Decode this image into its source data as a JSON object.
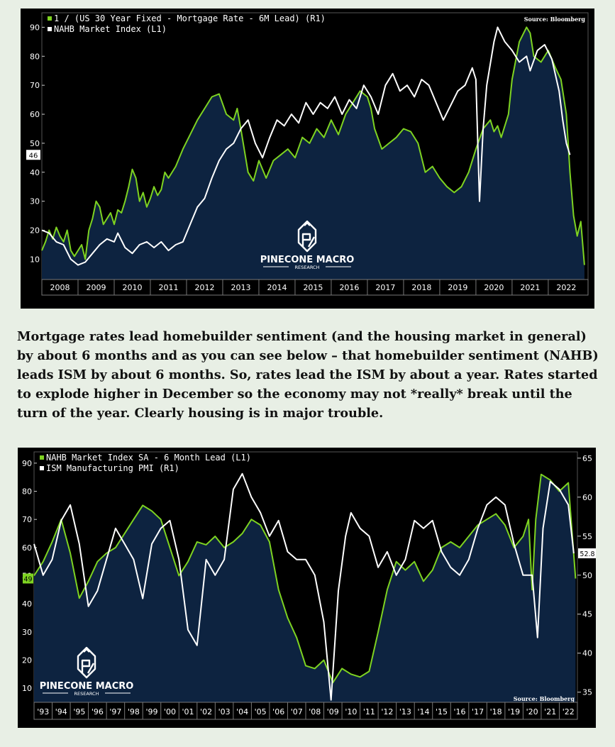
{
  "colors": {
    "green": "#7ed321",
    "white": "#ffffff",
    "navy": "#0d2340",
    "background": "#e8efe5",
    "frame": "#000000"
  },
  "logo": {
    "name": "PINECONE MACRO",
    "sub": "RESEARCH",
    "icon": "pinecone-logo-icon"
  },
  "prose": "Mortgage rates lead homebuilder sentiment (and the housing market in general) by about 6 months and as you can see below – that homebuilder sentiment (NAHB) leads ISM by about 6 months. So, rates lead the ISM by about a year. Rates started to explode higher in December so the economy may not *really* break until the turn of the year. Clearly housing is in major trouble.",
  "chart_data": [
    {
      "type": "line",
      "source": "Source: Bloomberg",
      "x_range": [
        2007.5,
        2022.6
      ],
      "ylim": [
        3,
        95
      ],
      "left_ticks": [
        10,
        20,
        30,
        40,
        50,
        60,
        70,
        80,
        90
      ],
      "categories": [
        "2008",
        "2009",
        "2010",
        "2011",
        "2012",
        "2013",
        "2014",
        "2015",
        "2016",
        "2017",
        "2018",
        "2019",
        "2020",
        "2021",
        "2022"
      ],
      "last_value_label": "46",
      "grid": false,
      "legend_position": "top-left",
      "series": [
        {
          "name": "1 / (US 30 Year Fixed - Mortgage Rate - 6M Lead) (R1)",
          "color": "#7ed321",
          "fill": true,
          "x": [
            2007.5,
            2007.6,
            2007.7,
            2007.8,
            2007.9,
            2008.0,
            2008.1,
            2008.2,
            2008.3,
            2008.4,
            2008.5,
            2008.6,
            2008.7,
            2008.8,
            2008.9,
            2009.0,
            2009.1,
            2009.2,
            2009.3,
            2009.4,
            2009.5,
            2009.6,
            2009.7,
            2009.8,
            2009.9,
            2010.0,
            2010.1,
            2010.2,
            2010.3,
            2010.4,
            2010.5,
            2010.6,
            2010.7,
            2010.8,
            2010.9,
            2011.0,
            2011.2,
            2011.4,
            2011.6,
            2011.8,
            2012.0,
            2012.2,
            2012.4,
            2012.6,
            2012.8,
            2012.9,
            2013.0,
            2013.2,
            2013.35,
            2013.5,
            2013.7,
            2013.9,
            2014.1,
            2014.3,
            2014.5,
            2014.7,
            2014.9,
            2015.1,
            2015.3,
            2015.5,
            2015.7,
            2015.9,
            2016.1,
            2016.3,
            2016.5,
            2016.6,
            2016.7,
            2016.9,
            2017.1,
            2017.3,
            2017.5,
            2017.7,
            2017.9,
            2018.1,
            2018.3,
            2018.5,
            2018.7,
            2018.9,
            2019.1,
            2019.3,
            2019.5,
            2019.7,
            2019.9,
            2020.0,
            2020.1,
            2020.2,
            2020.4,
            2020.5,
            2020.7,
            2020.9,
            2021.0,
            2021.1,
            2021.3,
            2021.5,
            2021.7,
            2021.85,
            2022.0,
            2022.1,
            2022.2,
            2022.3,
            2022.4,
            2022.5
          ],
          "y": [
            13,
            16,
            20,
            17,
            21,
            18,
            16,
            20,
            13,
            11,
            13,
            15,
            10,
            20,
            24,
            30,
            28,
            22,
            24,
            26,
            22,
            27,
            26,
            30,
            35,
            41,
            38,
            30,
            33,
            28,
            31,
            35,
            32,
            34,
            40,
            38,
            42,
            48,
            53,
            58,
            62,
            66,
            67,
            60,
            58,
            62,
            55,
            40,
            37,
            44,
            38,
            44,
            46,
            48,
            45,
            52,
            50,
            55,
            52,
            58,
            53,
            60,
            64,
            68,
            66,
            62,
            55,
            48,
            50,
            52,
            55,
            54,
            50,
            40,
            42,
            38,
            35,
            33,
            35,
            40,
            48,
            55,
            58,
            54,
            56,
            52,
            60,
            72,
            85,
            90,
            88,
            80,
            78,
            82,
            76,
            72,
            60,
            40,
            25,
            18,
            23,
            8
          ]
        },
        {
          "name": "NAHB Market Index  (L1)",
          "color": "#ffffff",
          "fill": false,
          "x": [
            2007.5,
            2007.7,
            2007.9,
            2008.1,
            2008.3,
            2008.5,
            2008.7,
            2008.9,
            2009.1,
            2009.3,
            2009.5,
            2009.6,
            2009.8,
            2010.0,
            2010.2,
            2010.4,
            2010.6,
            2010.8,
            2011.0,
            2011.2,
            2011.4,
            2011.6,
            2011.8,
            2012.0,
            2012.2,
            2012.4,
            2012.6,
            2012.8,
            2013.0,
            2013.2,
            2013.4,
            2013.6,
            2013.8,
            2014.0,
            2014.2,
            2014.4,
            2014.6,
            2014.8,
            2015.0,
            2015.2,
            2015.4,
            2015.6,
            2015.8,
            2016.0,
            2016.2,
            2016.4,
            2016.6,
            2016.8,
            2017.0,
            2017.2,
            2017.4,
            2017.6,
            2017.8,
            2018.0,
            2018.2,
            2018.4,
            2018.6,
            2018.8,
            2019.0,
            2019.2,
            2019.4,
            2019.5,
            2019.6,
            2019.7,
            2019.8,
            2020.0,
            2020.1,
            2020.3,
            2020.5,
            2020.7,
            2020.9,
            2021.0,
            2021.2,
            2021.4,
            2021.6,
            2021.8,
            2021.9,
            2022.0,
            2022.1
          ],
          "y": [
            20,
            19,
            16,
            15,
            10,
            8,
            9,
            12,
            15,
            17,
            16,
            19,
            14,
            12,
            15,
            16,
            14,
            16,
            13,
            15,
            16,
            22,
            28,
            31,
            38,
            44,
            48,
            50,
            55,
            58,
            50,
            45,
            52,
            58,
            56,
            60,
            57,
            64,
            60,
            64,
            62,
            66,
            60,
            65,
            62,
            70,
            66,
            60,
            70,
            74,
            68,
            70,
            66,
            72,
            70,
            64,
            58,
            63,
            68,
            70,
            76,
            72,
            30,
            55,
            70,
            85,
            90,
            85,
            82,
            78,
            80,
            75,
            82,
            84,
            79,
            68,
            58,
            50,
            46
          ]
        }
      ]
    },
    {
      "type": "line",
      "source": "Source: Bloomberg",
      "x_range": [
        1992.5,
        2022.5
      ],
      "ylim": [
        5,
        94
      ],
      "right_ylim": [
        33.7,
        65.8
      ],
      "left_ticks": [
        10,
        20,
        30,
        40,
        50,
        60,
        70,
        80,
        90
      ],
      "right_ticks": [
        35,
        40,
        45,
        50,
        55,
        60,
        65
      ],
      "categories": [
        "'93",
        "'94",
        "'95",
        "'96",
        "'97",
        "'98",
        "'99",
        "'00",
        "'01",
        "'02",
        "'03",
        "'04",
        "'05",
        "'06",
        "'07",
        "'08",
        "'09",
        "'10",
        "'11",
        "'12",
        "'13",
        "'14",
        "'15",
        "'16",
        "'17",
        "'18",
        "'19",
        "'20",
        "'21",
        "'22"
      ],
      "left_last_value_label": "49",
      "right_last_value_label": "52.8",
      "grid": false,
      "legend_position": "top-left",
      "series": [
        {
          "name": "NAHB Market Index SA - 6 Month Lead (L1)",
          "color": "#7ed321",
          "fill": true,
          "axis": "left",
          "x": [
            1992.5,
            1993.0,
            1993.5,
            1994.0,
            1994.5,
            1995.0,
            1995.5,
            1996.0,
            1996.5,
            1997.0,
            1997.5,
            1998.0,
            1998.5,
            1999.0,
            1999.5,
            2000.0,
            2000.5,
            2001.0,
            2001.5,
            2002.0,
            2002.5,
            2003.0,
            2003.5,
            2004.0,
            2004.5,
            2005.0,
            2005.5,
            2006.0,
            2006.5,
            2007.0,
            2007.5,
            2008.0,
            2008.5,
            2009.0,
            2009.5,
            2010.0,
            2010.5,
            2011.0,
            2011.5,
            2012.0,
            2012.5,
            2013.0,
            2013.5,
            2014.0,
            2014.5,
            2015.0,
            2015.5,
            2016.0,
            2016.5,
            2017.0,
            2017.5,
            2018.0,
            2018.5,
            2019.0,
            2019.5,
            2019.8,
            2020.0,
            2020.2,
            2020.5,
            2021.0,
            2021.5,
            2022.0,
            2022.4
          ],
          "y": [
            50,
            55,
            62,
            70,
            58,
            42,
            48,
            55,
            58,
            60,
            65,
            70,
            75,
            73,
            70,
            60,
            50,
            55,
            62,
            61,
            64,
            60,
            62,
            65,
            70,
            68,
            62,
            45,
            35,
            28,
            18,
            17,
            20,
            12,
            17,
            15,
            14,
            16,
            30,
            45,
            55,
            52,
            55,
            48,
            52,
            60,
            62,
            60,
            64,
            68,
            70,
            72,
            68,
            60,
            64,
            70,
            45,
            70,
            86,
            84,
            80,
            83,
            49
          ]
        },
        {
          "name": "ISM Manufacturing PMI (R1)",
          "color": "#ffffff",
          "fill": false,
          "axis": "right",
          "x": [
            1992.5,
            1993.0,
            1993.5,
            1994.0,
            1994.5,
            1995.0,
            1995.5,
            1996.0,
            1996.5,
            1997.0,
            1997.5,
            1998.0,
            1998.5,
            1999.0,
            1999.5,
            2000.0,
            2000.5,
            2001.0,
            2001.5,
            2002.0,
            2002.5,
            2003.0,
            2003.5,
            2004.0,
            2004.5,
            2005.0,
            2005.5,
            2006.0,
            2006.5,
            2007.0,
            2007.5,
            2008.0,
            2008.5,
            2008.9,
            2009.3,
            2009.7,
            2010.0,
            2010.5,
            2011.0,
            2011.5,
            2012.0,
            2012.5,
            2013.0,
            2013.5,
            2014.0,
            2014.5,
            2015.0,
            2015.5,
            2016.0,
            2016.5,
            2017.0,
            2017.5,
            2018.0,
            2018.5,
            2019.0,
            2019.5,
            2020.0,
            2020.3,
            2020.6,
            2021.0,
            2021.5,
            2022.0,
            2022.3
          ],
          "y": [
            54,
            50,
            52,
            57,
            59,
            54,
            46,
            48,
            52,
            56,
            54,
            52,
            47,
            54,
            56,
            57,
            52,
            43,
            41,
            52,
            50,
            52,
            61,
            63,
            60,
            58,
            55,
            57,
            53,
            52,
            52,
            50,
            44,
            34,
            48,
            55,
            58,
            56,
            55,
            51,
            53,
            50,
            52,
            57,
            56,
            57,
            53,
            51,
            50,
            52,
            56,
            59,
            60,
            59,
            54,
            50,
            50,
            42,
            56,
            62,
            61,
            59,
            52.8
          ]
        }
      ]
    }
  ]
}
